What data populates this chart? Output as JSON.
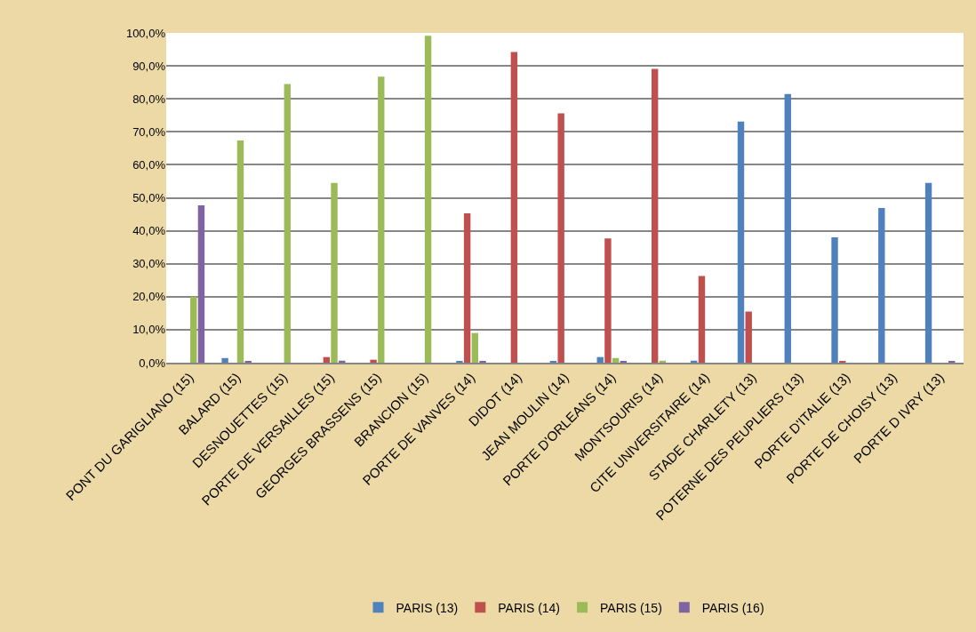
{
  "chart_data": {
    "type": "bar",
    "categories": [
      "PONT DU GARIGLIANO (15)",
      "BALARD (15)",
      "DESNOUETTES (15)",
      "PORTE DE VERSAILLES (15)",
      "GEORGES BRASSENS (15)",
      "BRANCION (15)",
      "PORTE DE VANVES (14)",
      "DIDOT (14)",
      "JEAN MOULIN (14)",
      "PORTE D'ORLEANS (14)",
      "MONTSOURIS (14)",
      "CITE UNIVERSITAIRE (14)",
      "STADE CHARLETY (13)",
      "POTERNE DES PEUPLIERS (13)",
      "PORTE D'ITALIE (13)",
      "PORTE DE CHOISY (13)",
      "PORTE D IVRY (13)"
    ],
    "series": [
      {
        "name": "PARIS (13)",
        "color": "#4f81bd",
        "values": [
          null,
          1.4,
          null,
          null,
          null,
          null,
          0.4,
          null,
          0.4,
          1.7,
          null,
          0.6,
          73.1,
          81.5,
          38.0,
          46.9,
          54.5
        ]
      },
      {
        "name": "PARIS (14)",
        "color": "#c0504d",
        "values": [
          null,
          null,
          null,
          1.7,
          0.9,
          null,
          45.3,
          94.2,
          75.6,
          37.7,
          89.1,
          26.3,
          15.5,
          null,
          0.4,
          null,
          null
        ]
      },
      {
        "name": "PARIS (15)",
        "color": "#9bbb59",
        "values": [
          20.0,
          67.4,
          84.5,
          54.5,
          86.7,
          99.1,
          9.0,
          null,
          null,
          1.4,
          0.6,
          null,
          null,
          null,
          null,
          null,
          null
        ]
      },
      {
        "name": "PARIS (16)",
        "color": "#8064a2",
        "values": [
          47.7,
          0.4,
          null,
          0.6,
          null,
          null,
          0.4,
          null,
          null,
          0.4,
          null,
          null,
          null,
          null,
          null,
          null,
          0.4
        ]
      }
    ],
    "ylim": [
      0,
      100
    ],
    "yticks": [
      {
        "value": 0,
        "label": "0,0%"
      },
      {
        "value": 10,
        "label": "10,0%"
      },
      {
        "value": 20,
        "label": "20,0%"
      },
      {
        "value": 30,
        "label": "30,0%"
      },
      {
        "value": 40,
        "label": "40,0%"
      },
      {
        "value": 50,
        "label": "50,0%"
      },
      {
        "value": 60,
        "label": "60,0%"
      },
      {
        "value": 70,
        "label": "70,0%"
      },
      {
        "value": 80,
        "label": "80,0%"
      },
      {
        "value": 90,
        "label": "90,0%"
      },
      {
        "value": 100,
        "label": "100,0%"
      }
    ],
    "grid": "y",
    "legend": "bottom"
  }
}
